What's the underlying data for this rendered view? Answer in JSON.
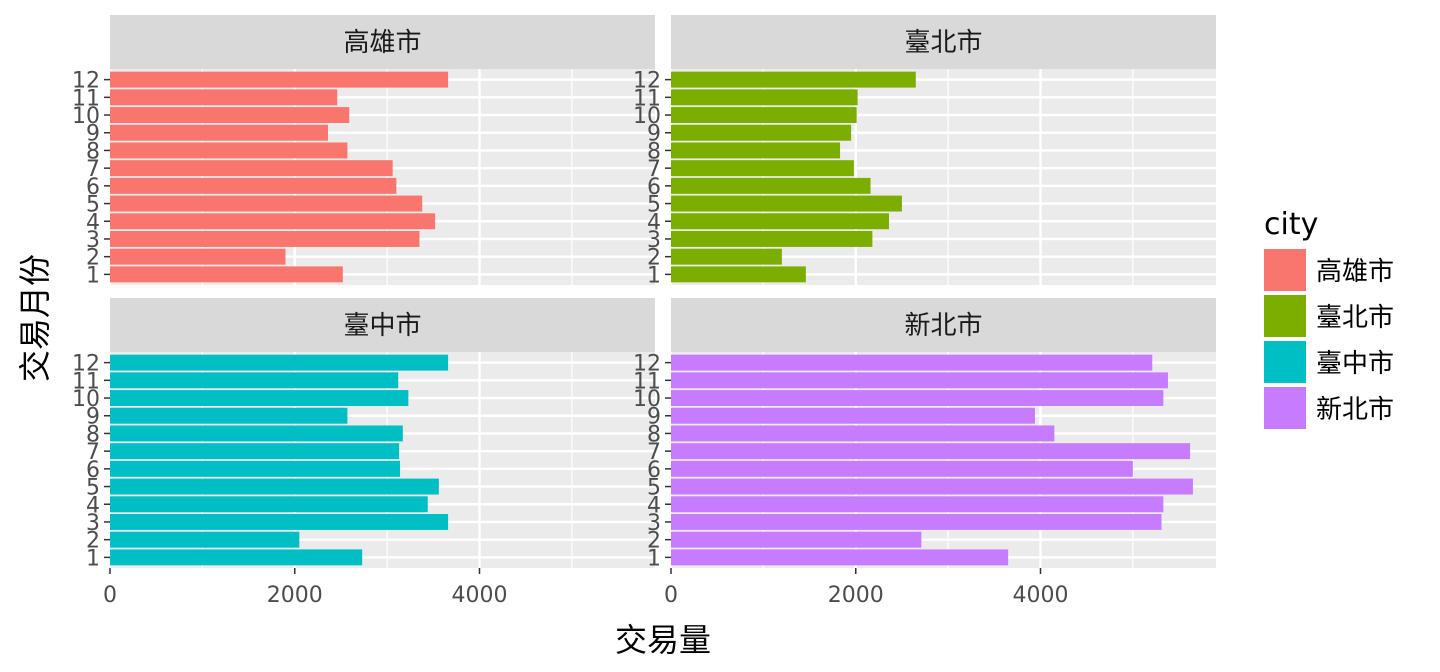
{
  "chart_data": {
    "type": "bar",
    "orientation": "horizontal",
    "facet": "city",
    "xlabel": "交易量",
    "ylabel": "交易月份",
    "xlim": [
      0,
      5900
    ],
    "x_ticks": [
      0,
      2000,
      4000
    ],
    "categories": [
      "1",
      "2",
      "3",
      "4",
      "5",
      "6",
      "7",
      "8",
      "9",
      "10",
      "11",
      "12"
    ],
    "grid": true,
    "legend": {
      "title": "city",
      "position": "right"
    },
    "series": [
      {
        "name": "高雄市",
        "color": "#F8766D",
        "values": [
          2520,
          1900,
          3350,
          3520,
          3380,
          3100,
          3060,
          2570,
          2360,
          2590,
          2460,
          3660
        ]
      },
      {
        "name": "臺北市",
        "color": "#7CAE00",
        "values": [
          1460,
          1200,
          2180,
          2360,
          2500,
          2160,
          1980,
          1830,
          1950,
          2010,
          2020,
          2650
        ]
      },
      {
        "name": "臺中市",
        "color": "#00BFC4",
        "values": [
          2730,
          2050,
          3660,
          3440,
          3560,
          3140,
          3130,
          3170,
          2570,
          3230,
          3120,
          3660
        ]
      },
      {
        "name": "新北市",
        "color": "#C77CFF",
        "values": [
          3650,
          2710,
          5310,
          5330,
          5650,
          5000,
          5620,
          4150,
          3940,
          5330,
          5380,
          5210
        ]
      }
    ]
  }
}
